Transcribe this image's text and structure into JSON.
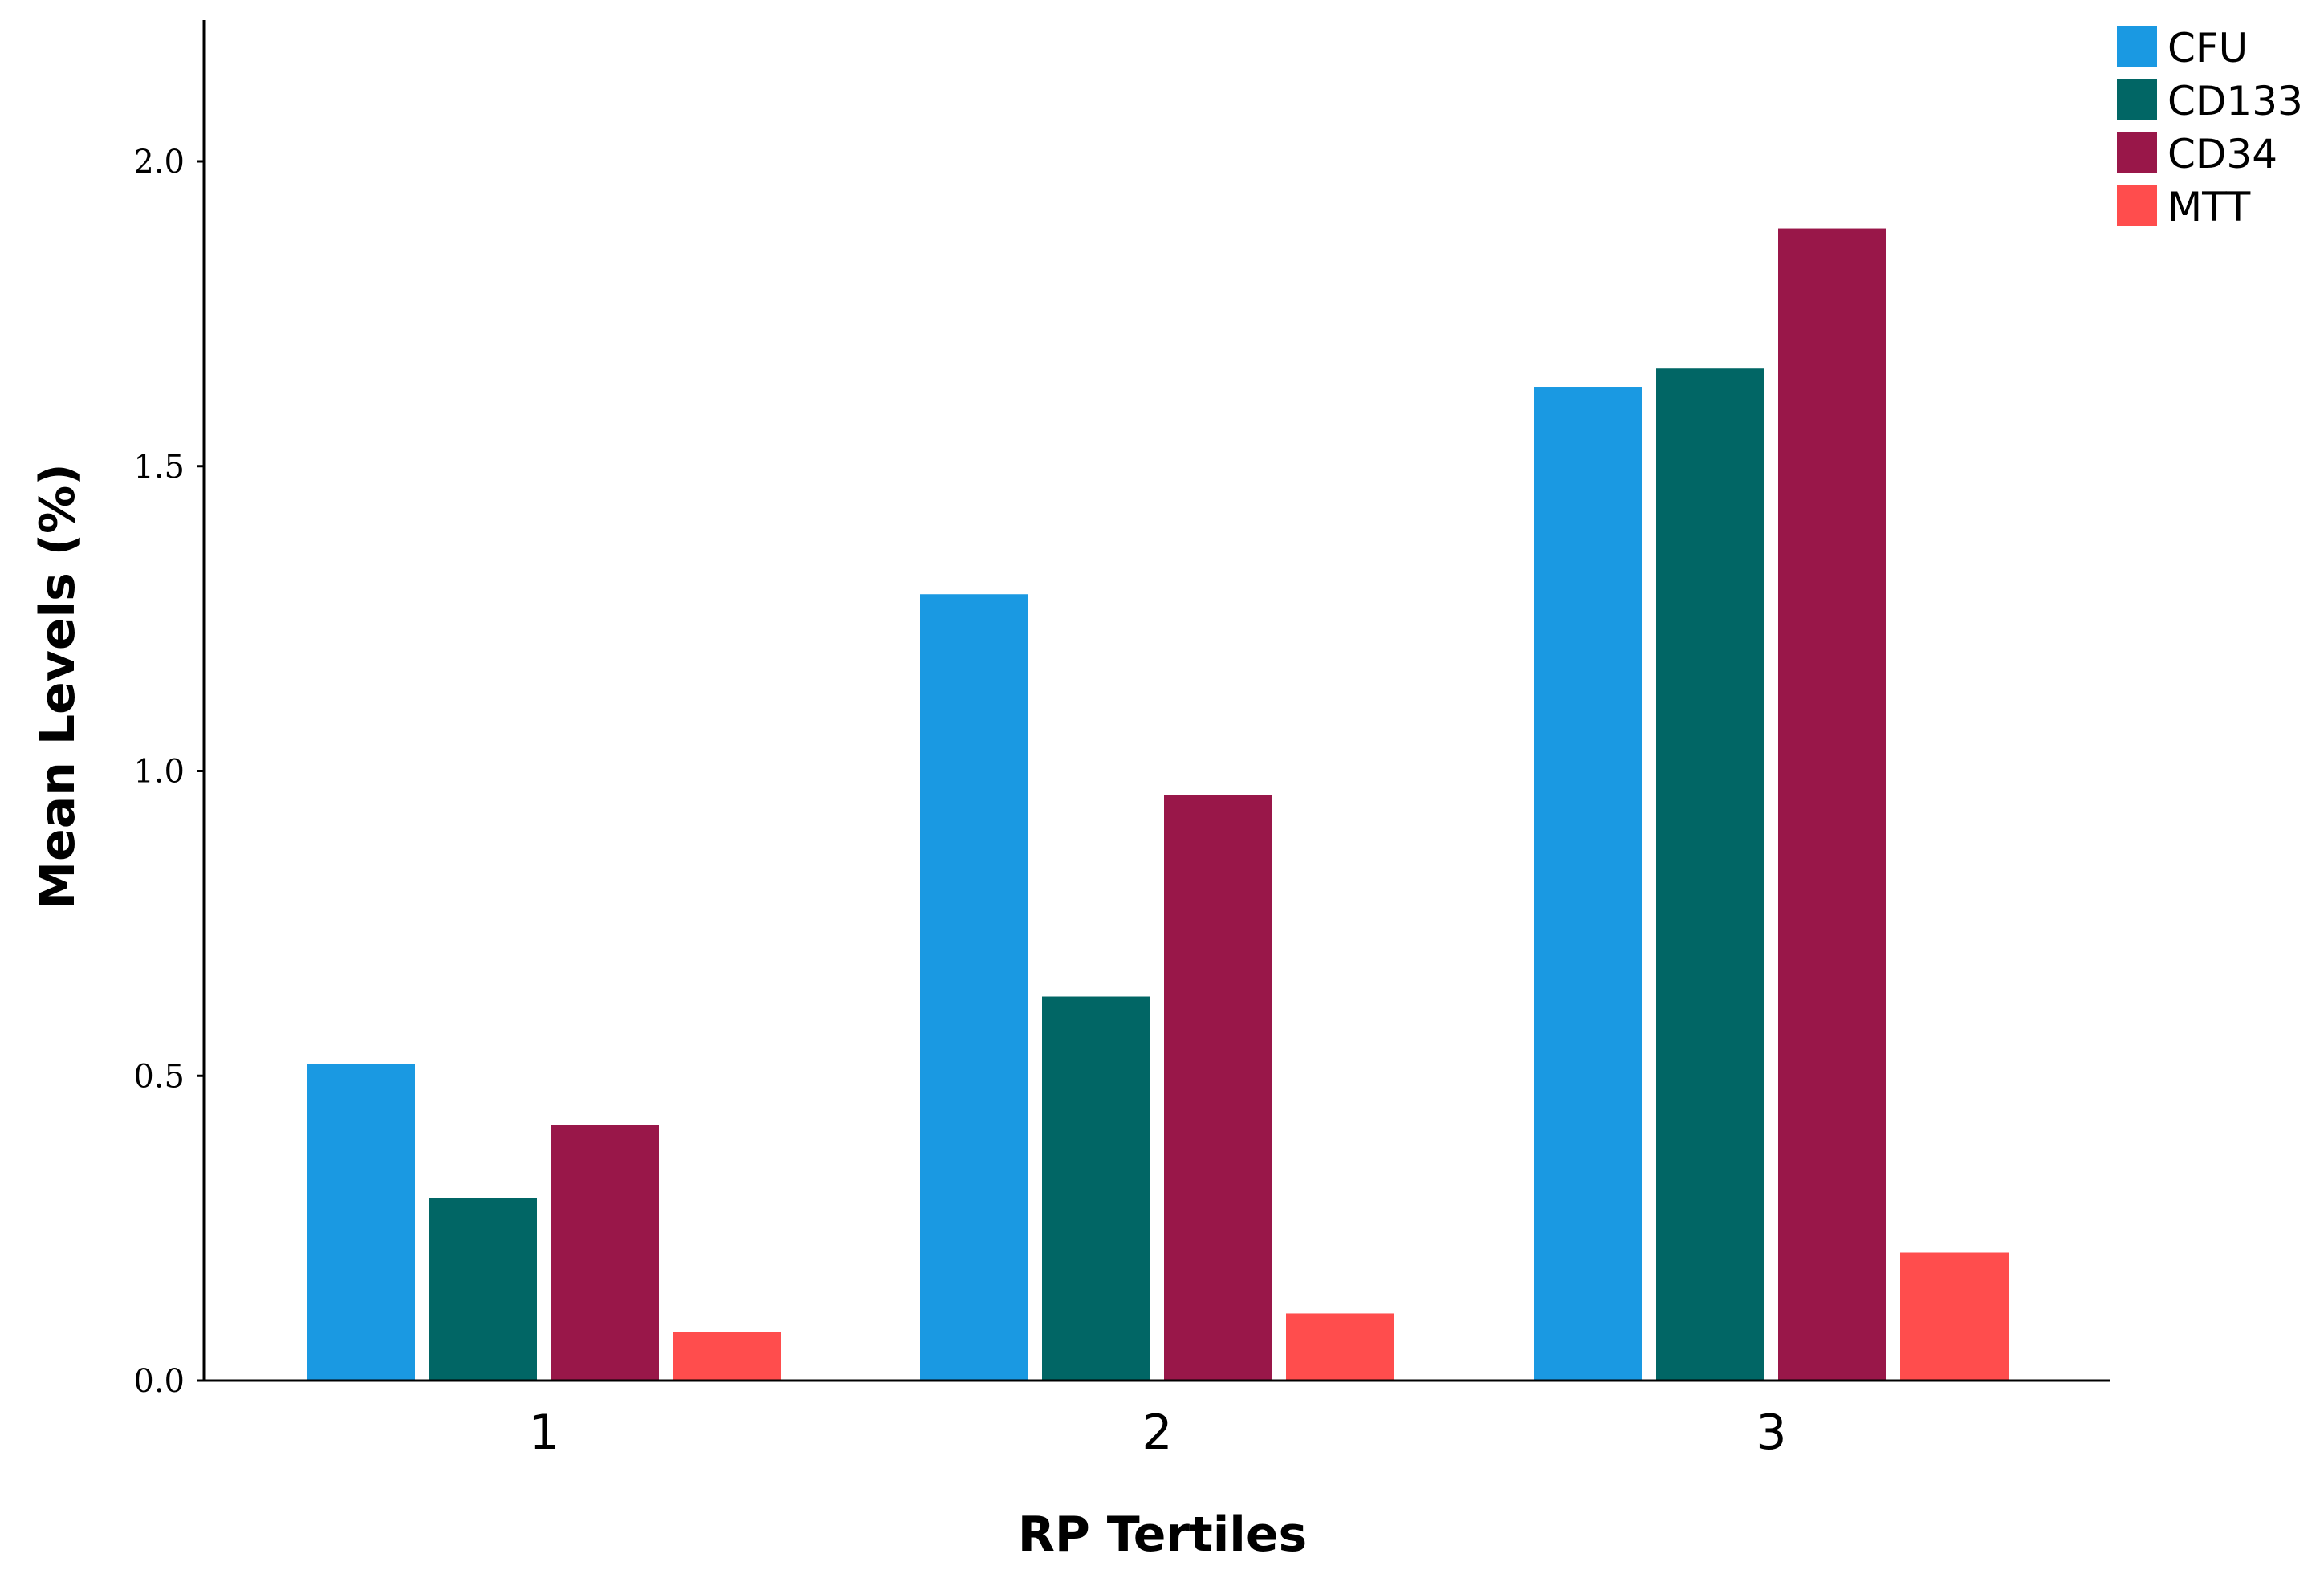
{
  "chart_data": {
    "type": "bar",
    "title": "",
    "xlabel": "RP Tertiles",
    "ylabel": "Mean Levels (%)",
    "categories": [
      "1",
      "2",
      "3"
    ],
    "ylim": [
      0,
      2.23
    ],
    "yticks": [
      "0.0",
      "0.5",
      "1.0",
      "1.5",
      "2.0"
    ],
    "grid": false,
    "legend_position": "top-right",
    "series": [
      {
        "name": "CFU",
        "color": "#1a99e2",
        "values": [
          0.52,
          1.29,
          1.63
        ]
      },
      {
        "name": "CD133",
        "color": "#016665",
        "values": [
          0.3,
          0.63,
          1.66
        ]
      },
      {
        "name": "CD34",
        "color": "#991749",
        "values": [
          0.42,
          0.96,
          1.89
        ]
      },
      {
        "name": "MTT",
        "color": "#ff4d4d",
        "values": [
          0.08,
          0.11,
          0.21
        ]
      }
    ]
  }
}
